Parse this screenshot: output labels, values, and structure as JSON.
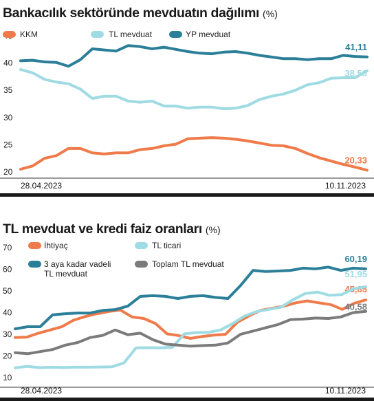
{
  "colors": {
    "kkm": "#ef7a4a",
    "tl": "#9fdbe3",
    "yp": "#2b7f99",
    "ihtiyac": "#ef7a4a",
    "tl_ticari": "#9fdbe3",
    "tl_3ay": "#2b7f99",
    "toplam": "#7b7b7b"
  },
  "chart_data": [
    {
      "type": "line",
      "title": "Bankacılık sektöründe mevduatın dağılımı",
      "unit": "(%)",
      "ylim": [
        20,
        45
      ],
      "yticks": [
        20,
        25,
        30,
        35,
        40,
        45
      ],
      "x_start": "28.04.2023",
      "x_end": "10.11.2023",
      "legend_position": "top",
      "series": [
        {
          "name": "KKM",
          "color_key": "kkm",
          "end_label": "20,33",
          "values": [
            20.5,
            21.1,
            22.5,
            23.0,
            24.3,
            24.3,
            23.5,
            23.3,
            23.5,
            23.5,
            24.1,
            24.3,
            24.8,
            25.1,
            26.1,
            26.2,
            26.3,
            26.2,
            26.0,
            25.7,
            25.3,
            24.9,
            24.8,
            24.3,
            23.4,
            22.6,
            22.0,
            21.4,
            20.9,
            20.33
          ]
        },
        {
          "name": "TL mevduat",
          "color_key": "tl",
          "end_label": "38,56",
          "values": [
            38.8,
            38.2,
            37.0,
            36.5,
            36.2,
            35.2,
            33.5,
            33.9,
            33.9,
            33.0,
            32.8,
            33.0,
            32.1,
            32.1,
            31.7,
            31.9,
            31.9,
            31.6,
            31.7,
            32.2,
            33.3,
            33.9,
            34.3,
            35.0,
            36.0,
            36.4,
            37.2,
            37.3,
            37.3,
            38.56
          ]
        },
        {
          "name": "YP mevduat",
          "color_key": "yp",
          "end_label": "41,11",
          "values": [
            40.4,
            40.5,
            40.2,
            40.1,
            39.4,
            40.6,
            42.6,
            42.4,
            42.2,
            43.2,
            43.0,
            42.6,
            42.9,
            42.5,
            42.1,
            41.8,
            41.7,
            42.0,
            42.1,
            41.8,
            41.4,
            41.1,
            40.8,
            40.8,
            40.6,
            40.8,
            40.8,
            41.4,
            41.2,
            41.11
          ]
        }
      ]
    },
    {
      "type": "line",
      "title": "TL mevduat ve kredi faiz oranları",
      "unit": "(%)",
      "ylim": [
        10,
        70
      ],
      "yticks": [
        10,
        20,
        30,
        40,
        50,
        60,
        70
      ],
      "x_start": "28.04.2023",
      "x_end": "10.11.2023",
      "legend_position": "top-left",
      "series": [
        {
          "name": "İhtiyaç",
          "color_key": "ihtiyac",
          "end_label": "45,85",
          "values": [
            28.5,
            28.7,
            30.5,
            32.0,
            33.5,
            36.5,
            38.2,
            39.5,
            40.5,
            41.2,
            38.0,
            37.3,
            35.0,
            30.2,
            29.4,
            28.1,
            29.0,
            29.6,
            30.0,
            35.5,
            38.5,
            41.0,
            42.0,
            43.0,
            44.5,
            45.4,
            44.5,
            43.7,
            41.5,
            44.3,
            45.85
          ]
        },
        {
          "name": "TL ticari",
          "color_key": "tl_ticari",
          "end_label": "51,95",
          "values": [
            14.5,
            15.2,
            14.6,
            14.8,
            14.7,
            14.8,
            14.8,
            14.9,
            15.0,
            16.8,
            23.7,
            23.8,
            23.7,
            24.0,
            30.2,
            30.8,
            30.9,
            32.0,
            35.0,
            38.5,
            40.5,
            41.5,
            42.5,
            46.0,
            48.8,
            49.5,
            48.0,
            48.3,
            51.0,
            51.95
          ]
        },
        {
          "name": "3 aya kadar vadeli TL mevduat",
          "name_lines": [
            "3 aya kadar vadeli",
            "TL mevduat"
          ],
          "color_key": "tl_3ay",
          "end_label": "60,19",
          "values": [
            32.5,
            33.5,
            33.5,
            39.0,
            39.5,
            39.8,
            39.8,
            41.0,
            41.4,
            43.0,
            47.5,
            47.8,
            47.5,
            46.5,
            47.5,
            47.8,
            47.0,
            46.5,
            52.5,
            59.5,
            59.0,
            59.2,
            59.5,
            60.5,
            60.2,
            61.0,
            59.5,
            60.5,
            60.19
          ]
        },
        {
          "name": "Toplam TL mevduat",
          "color_key": "toplam",
          "end_label": "40,58",
          "values": [
            21.5,
            21.0,
            22.0,
            23.0,
            25.0,
            26.2,
            28.5,
            29.5,
            32.0,
            29.8,
            30.5,
            27.5,
            25.5,
            25.0,
            24.5,
            24.8,
            25.0,
            26.0,
            30.0,
            31.5,
            33.0,
            34.5,
            36.8,
            37.0,
            37.5,
            37.3,
            38.0,
            40.0,
            40.58
          ]
        }
      ]
    }
  ]
}
